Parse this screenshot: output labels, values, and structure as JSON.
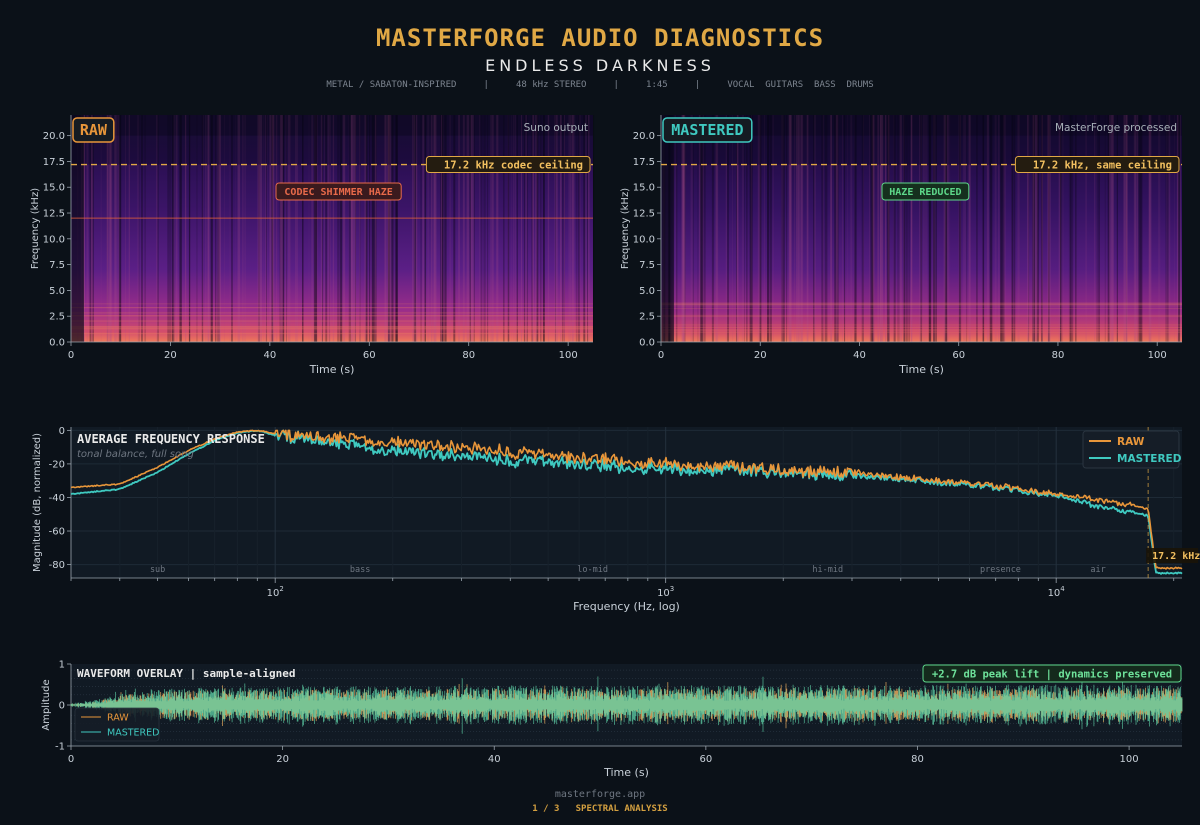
{
  "header": {
    "title": "MASTERFORGE AUDIO DIAGNOSTICS",
    "subtitle": "ENDLESS DARKNESS",
    "meta": "METAL / SABATON-INSPIRED     |     48 kHz STEREO     |     1:45     |     VOCAL  GUITARS  BASS  DRUMS"
  },
  "colors": {
    "raw": "#e8963a",
    "mastered": "#3fc9c0",
    "background": "#0b1118",
    "panel": "#111a24",
    "gold": "#e0a845"
  },
  "chart_data": [
    {
      "type": "heatmap",
      "badge": "RAW",
      "corner_label": "Suno output",
      "xlabel": "Time (s)",
      "ylabel": "Frequency (kHz)",
      "xlim": [
        0,
        105
      ],
      "ylim": [
        0,
        22
      ],
      "x_ticks": [
        "0",
        "20",
        "40",
        "60",
        "80",
        "100"
      ],
      "y_ticks": [
        "0.0",
        "2.5",
        "5.0",
        "7.5",
        "10.0",
        "12.5",
        "15.0",
        "17.5",
        "20.0"
      ],
      "cutoff_khz": 17.2,
      "cutoff_label": "17.2 kHz codec ceiling",
      "haze_line_khz": 12.0,
      "annotation": "CODEC SHIMMER HAZE"
    },
    {
      "type": "heatmap",
      "badge": "MASTERED",
      "corner_label": "MasterForge processed",
      "xlabel": "Time (s)",
      "ylabel": "Frequency (kHz)",
      "xlim": [
        0,
        105
      ],
      "ylim": [
        0,
        22
      ],
      "x_ticks": [
        "0",
        "20",
        "40",
        "60",
        "80",
        "100"
      ],
      "y_ticks": [
        "0.0",
        "2.5",
        "5.0",
        "7.5",
        "10.0",
        "12.5",
        "15.0",
        "17.5",
        "20.0"
      ],
      "cutoff_khz": 17.2,
      "cutoff_label": "17.2 kHz, same ceiling",
      "annotation": "HAZE REDUCED"
    },
    {
      "type": "line",
      "title": "AVERAGE FREQUENCY RESPONSE",
      "subtitle": "tonal balance, full song",
      "xlabel": "Frequency (Hz, log)",
      "ylabel": "Magnitude (dB, normalized)",
      "x_scale": "log",
      "xlim": [
        30,
        21000
      ],
      "ylim": [
        -88,
        2
      ],
      "y_ticks": [
        "0",
        "-20",
        "-40",
        "-60",
        "-80"
      ],
      "x_ticks": [
        {
          "value": 100,
          "base": "10",
          "exp": "2"
        },
        {
          "value": 1000,
          "base": "10",
          "exp": "3"
        },
        {
          "value": 10000,
          "base": "10",
          "exp": "4"
        }
      ],
      "bands": [
        {
          "label": "sub",
          "x": 50
        },
        {
          "label": "bass",
          "x": 165
        },
        {
          "label": "lo-mid",
          "x": 650
        },
        {
          "label": "hi-mid",
          "x": 2600
        },
        {
          "label": "presence",
          "x": 7200
        },
        {
          "label": "air",
          "x": 12800
        }
      ],
      "cutoff_hz": 17200,
      "cutoff_label": "17.2 kHz",
      "legend_position": "top-right",
      "series": [
        {
          "name": "RAW",
          "points": [
            [
              30,
              -34
            ],
            [
              40,
              -32
            ],
            [
              50,
              -22
            ],
            [
              60,
              -12
            ],
            [
              70,
              -5
            ],
            [
              80,
              -1
            ],
            [
              90,
              0
            ],
            [
              100,
              -2
            ],
            [
              130,
              -4
            ],
            [
              160,
              -5
            ],
            [
              200,
              -7
            ],
            [
              300,
              -10
            ],
            [
              400,
              -13
            ],
            [
              600,
              -16
            ],
            [
              800,
              -18
            ],
            [
              1000,
              -20
            ],
            [
              1500,
              -22
            ],
            [
              2000,
              -24
            ],
            [
              3000,
              -25
            ],
            [
              4000,
              -28
            ],
            [
              5000,
              -30
            ],
            [
              7000,
              -33
            ],
            [
              10000,
              -38
            ],
            [
              13000,
              -42
            ],
            [
              16000,
              -45
            ],
            [
              17200,
              -47
            ],
            [
              18000,
              -82
            ],
            [
              21000,
              -82
            ]
          ]
        },
        {
          "name": "MASTERED",
          "points": [
            [
              30,
              -38
            ],
            [
              40,
              -35
            ],
            [
              50,
              -25
            ],
            [
              60,
              -14
            ],
            [
              70,
              -6
            ],
            [
              80,
              -1.5
            ],
            [
              90,
              0
            ],
            [
              100,
              -3
            ],
            [
              130,
              -6
            ],
            [
              160,
              -9
            ],
            [
              200,
              -12
            ],
            [
              300,
              -15
            ],
            [
              400,
              -18
            ],
            [
              600,
              -20
            ],
            [
              800,
              -22
            ],
            [
              1000,
              -23
            ],
            [
              1500,
              -24
            ],
            [
              2000,
              -25
            ],
            [
              3000,
              -27
            ],
            [
              4000,
              -29
            ],
            [
              5000,
              -31
            ],
            [
              7000,
              -34
            ],
            [
              10000,
              -39
            ],
            [
              13000,
              -46
            ],
            [
              16000,
              -49
            ],
            [
              17200,
              -51
            ],
            [
              18000,
              -85
            ],
            [
              21000,
              -85
            ]
          ]
        }
      ]
    },
    {
      "type": "line",
      "title": "WAVEFORM OVERLAY  |  sample-aligned",
      "annotation": "+2.7 dB peak lift  |  dynamics preserved",
      "xlabel": "Time (s)",
      "ylabel": "Amplitude",
      "xlim": [
        0,
        105
      ],
      "ylim": [
        -1,
        1
      ],
      "x_ticks": [
        "0",
        "20",
        "40",
        "60",
        "80",
        "100"
      ],
      "y_ticks": [
        "1",
        "0",
        "-1"
      ],
      "legend_position": "bottom-left",
      "series": [
        {
          "name": "RAW",
          "envelope": [
            [
              0,
              0.03
            ],
            [
              2,
              0.08
            ],
            [
              5,
              0.25
            ],
            [
              10,
              0.35
            ],
            [
              20,
              0.38
            ],
            [
              40,
              0.4
            ],
            [
              60,
              0.4
            ],
            [
              80,
              0.42
            ],
            [
              100,
              0.42
            ],
            [
              105,
              0.42
            ]
          ]
        },
        {
          "name": "MASTERED",
          "envelope": [
            [
              0,
              0.04
            ],
            [
              2,
              0.1
            ],
            [
              5,
              0.3
            ],
            [
              10,
              0.42
            ],
            [
              20,
              0.45
            ],
            [
              40,
              0.48
            ],
            [
              60,
              0.48
            ],
            [
              80,
              0.5
            ],
            [
              100,
              0.5
            ],
            [
              105,
              0.5
            ]
          ]
        }
      ]
    }
  ],
  "footer": {
    "domain": "masterforge.app",
    "page": "1 / 3   SPECTRAL ANALYSIS"
  }
}
